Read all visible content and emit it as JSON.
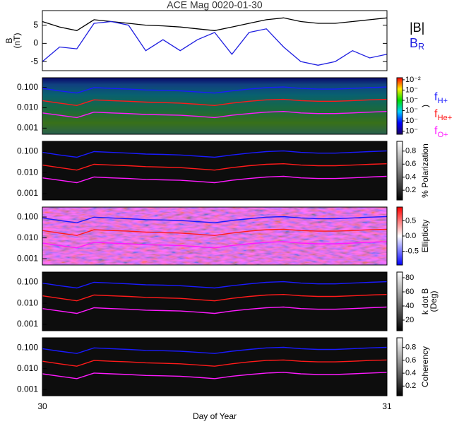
{
  "chart_data": [
    {
      "type": "line",
      "title": "ACE Mag 0020-01-30",
      "ylabel": [
        "B",
        "(nT)"
      ],
      "x": [
        30,
        30.05,
        30.1,
        30.15,
        30.2,
        30.25,
        30.3,
        30.35,
        30.4,
        30.45,
        30.5,
        30.55,
        30.6,
        30.65,
        30.7,
        30.75,
        30.8,
        30.85,
        30.9,
        30.95,
        31
      ],
      "xlim": [
        30,
        31
      ],
      "ylim": [
        -7.5,
        9
      ],
      "yticks": [
        -5,
        0,
        5
      ],
      "series": [
        {
          "name": "|B|",
          "color": "#000000",
          "values": [
            6,
            4.5,
            3.5,
            6.5,
            6,
            5.5,
            5,
            4.8,
            4.5,
            4,
            3.5,
            4.5,
            5.5,
            6.5,
            7,
            6,
            5.5,
            5.5,
            6,
            6.5,
            7
          ]
        },
        {
          "name": "B",
          "sub": "R",
          "color": "#1f1fe0",
          "values": [
            -5,
            -1,
            -1.5,
            5.5,
            6,
            5,
            -2,
            1,
            -2,
            1,
            3,
            -3,
            3,
            4,
            -1,
            -5,
            -6,
            -5,
            -2,
            -4,
            -3
          ]
        }
      ]
    },
    {
      "type": "spectrogram",
      "xlabel": "Day of Year",
      "x": [
        30,
        30.05,
        30.1,
        30.15,
        30.2,
        30.25,
        30.3,
        30.35,
        30.4,
        30.45,
        30.5,
        30.55,
        30.6,
        30.65,
        30.7,
        30.75,
        30.8,
        30.85,
        30.9,
        30.95,
        31
      ],
      "xlim": [
        30,
        31
      ],
      "xticks": [
        30,
        31
      ],
      "log_y": true,
      "ylim": [
        0.0005,
        0.3
      ],
      "yticks": [
        {
          "value": 0.001,
          "label": "0.001"
        },
        {
          "value": 0.01,
          "label": "0.010"
        },
        {
          "value": 0.1,
          "label": "0.100"
        }
      ],
      "series": [
        {
          "name": "f",
          "sub": "H+",
          "color": "#1a1aff",
          "values": [
            0.09,
            0.068,
            0.053,
            0.098,
            0.09,
            0.083,
            0.075,
            0.072,
            0.068,
            0.06,
            0.053,
            0.068,
            0.083,
            0.098,
            0.105,
            0.09,
            0.083,
            0.083,
            0.09,
            0.098,
            0.105
          ]
        },
        {
          "name": "f",
          "sub": "He+",
          "color": "#ff1a1a",
          "values": [
            0.0225,
            0.017,
            0.013,
            0.0245,
            0.0225,
            0.021,
            0.019,
            0.018,
            0.017,
            0.015,
            0.013,
            0.017,
            0.021,
            0.0245,
            0.026,
            0.0225,
            0.021,
            0.021,
            0.0225,
            0.0245,
            0.026
          ]
        },
        {
          "name": "f",
          "sub": "O+",
          "color": "#ff1aff",
          "values": [
            0.0056,
            0.0043,
            0.0033,
            0.0061,
            0.0056,
            0.0052,
            0.0047,
            0.0045,
            0.0043,
            0.0038,
            0.0033,
            0.0043,
            0.0052,
            0.0061,
            0.0066,
            0.0056,
            0.0052,
            0.0052,
            0.0056,
            0.0061,
            0.0066
          ]
        }
      ],
      "panels": [
        {
          "colormap": "rainbow",
          "cbar_label": [
            ")"
          ],
          "cbar_lim": [
            -7.3,
            -1.8
          ],
          "cbar_ticks": [
            {
              "value": -2,
              "label": "10⁻²"
            },
            {
              "value": -3,
              "label": "10⁻"
            },
            {
              "value": -4,
              "label": "10⁻"
            },
            {
              "value": -5,
              "label": "10⁻"
            },
            {
              "value": -6,
              "label": "10⁻"
            },
            {
              "value": -7,
              "label": "10⁻"
            }
          ]
        },
        {
          "colormap": "gray",
          "cbar_label": [
            "% Polarization"
          ],
          "cbar_lim": [
            0.05,
            0.95
          ],
          "cbar_ticks": [
            0.2,
            0.4,
            0.6,
            0.8
          ]
        },
        {
          "colormap": "bwr",
          "cbar_label": [
            "Ellipticity"
          ],
          "cbar_lim": [
            -0.95,
            0.95
          ],
          "cbar_ticks": [
            -0.5,
            {
              "value": 0,
              "label": "0.0"
            },
            0.5
          ]
        },
        {
          "colormap": "gray",
          "cbar_label": [
            "k dot B",
            "(Deg)"
          ],
          "cbar_lim": [
            5,
            88
          ],
          "cbar_ticks": [
            20,
            40,
            60,
            80
          ]
        },
        {
          "colormap": "gray",
          "cbar_label": [
            "Coherency"
          ],
          "cbar_lim": [
            0.05,
            0.95
          ],
          "cbar_ticks": [
            0.2,
            0.4,
            0.6,
            0.8
          ]
        }
      ]
    }
  ]
}
